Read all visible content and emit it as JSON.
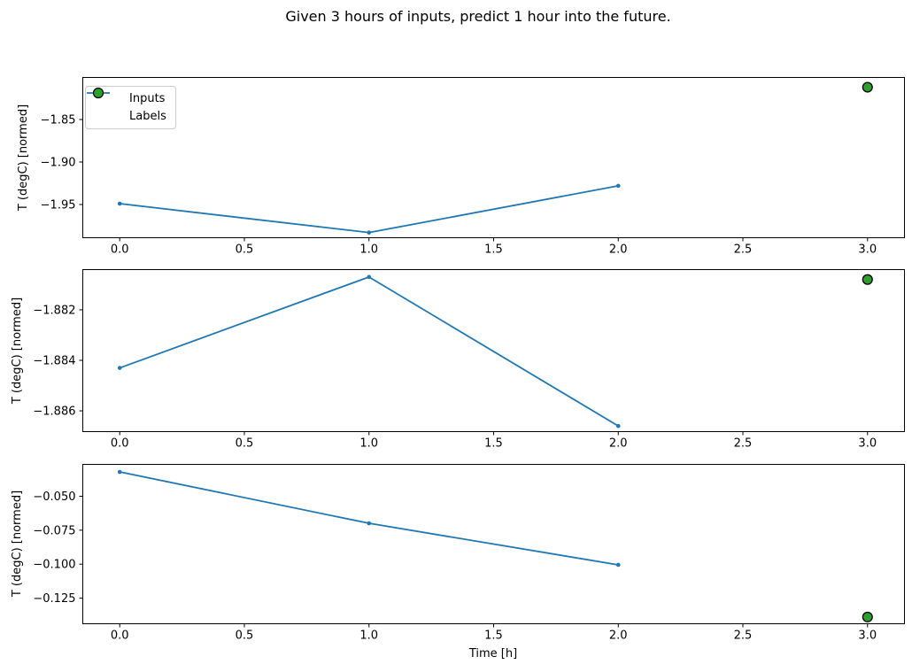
{
  "figure": {
    "title": "Given 3 hours of inputs, predict 1 hour into the future.",
    "xlabel": "Time [h]",
    "ylabel": "T (degC) [normed]"
  },
  "colors": {
    "inputs_line": "#1f77b4",
    "labels_marker": "#2ca02c",
    "marker_edge": "#000000",
    "axis": "#000000",
    "legend_border": "#cccccc",
    "background": "#ffffff"
  },
  "legend": {
    "position": "upper left",
    "entries": [
      {
        "label": "Inputs",
        "icon": "blue-line-dot-icon"
      },
      {
        "label": "Labels",
        "icon": "green-circle-icon"
      }
    ]
  },
  "chart_data": [
    {
      "type": "line",
      "ylabel": "T (degC) [normed]",
      "xlim": [
        -0.15,
        3.15
      ],
      "ylim": [
        -1.9896,
        -1.8
      ],
      "grid": false,
      "has_legend": true,
      "series": [
        {
          "name": "Inputs",
          "type": "line",
          "x": [
            0,
            1,
            2
          ],
          "y": [
            -1.949,
            -1.983,
            -1.928
          ]
        },
        {
          "name": "Labels",
          "type": "scatter",
          "x": [
            3
          ],
          "y": [
            -1.812
          ]
        }
      ],
      "xticks": {
        "values": [
          0,
          0.5,
          1,
          1.5,
          2,
          2.5,
          3
        ],
        "labels": [
          "0.0",
          "0.5",
          "1.0",
          "1.5",
          "2.0",
          "2.5",
          "3.0"
        ]
      },
      "yticks": {
        "values": [
          -1.85,
          -1.9,
          -1.95
        ],
        "labels": [
          "−1.85",
          "−1.90",
          "−1.95"
        ]
      }
    },
    {
      "type": "line",
      "ylabel": "T (degC) [normed]",
      "xlim": [
        -0.15,
        3.15
      ],
      "ylim": [
        -1.88684,
        -1.88039
      ],
      "grid": false,
      "has_legend": false,
      "series": [
        {
          "name": "Inputs",
          "type": "line",
          "x": [
            0,
            1,
            2
          ],
          "y": [
            -1.8843,
            -1.8807,
            -1.8866
          ]
        },
        {
          "name": "Labels",
          "type": "scatter",
          "x": [
            3
          ],
          "y": [
            -1.8808
          ]
        }
      ],
      "xticks": {
        "values": [
          0,
          0.5,
          1,
          1.5,
          2,
          2.5,
          3
        ],
        "labels": [
          "0.0",
          "0.5",
          "1.0",
          "1.5",
          "2.0",
          "2.5",
          "3.0"
        ]
      },
      "yticks": {
        "values": [
          -1.882,
          -1.884,
          -1.886
        ],
        "labels": [
          "−1.882",
          "−1.884",
          "−1.886"
        ]
      }
    },
    {
      "type": "line",
      "ylabel": "T (degC) [normed]",
      "xlabel": "Time [h]",
      "xlim": [
        -0.15,
        3.15
      ],
      "ylim": [
        -0.1442,
        -0.0262
      ],
      "grid": false,
      "has_legend": false,
      "series": [
        {
          "name": "Inputs",
          "type": "line",
          "x": [
            0,
            1,
            2
          ],
          "y": [
            -0.0321,
            -0.0699,
            -0.1005
          ]
        },
        {
          "name": "Labels",
          "type": "scatter",
          "x": [
            3
          ],
          "y": [
            -0.1389
          ]
        }
      ],
      "xticks": {
        "values": [
          0,
          0.5,
          1,
          1.5,
          2,
          2.5,
          3
        ],
        "labels": [
          "0.0",
          "0.5",
          "1.0",
          "1.5",
          "2.0",
          "2.5",
          "3.0"
        ]
      },
      "yticks": {
        "values": [
          -0.05,
          -0.075,
          -0.1,
          -0.125
        ],
        "labels": [
          "−0.050",
          "−0.075",
          "−0.100",
          "−0.125"
        ]
      }
    }
  ]
}
